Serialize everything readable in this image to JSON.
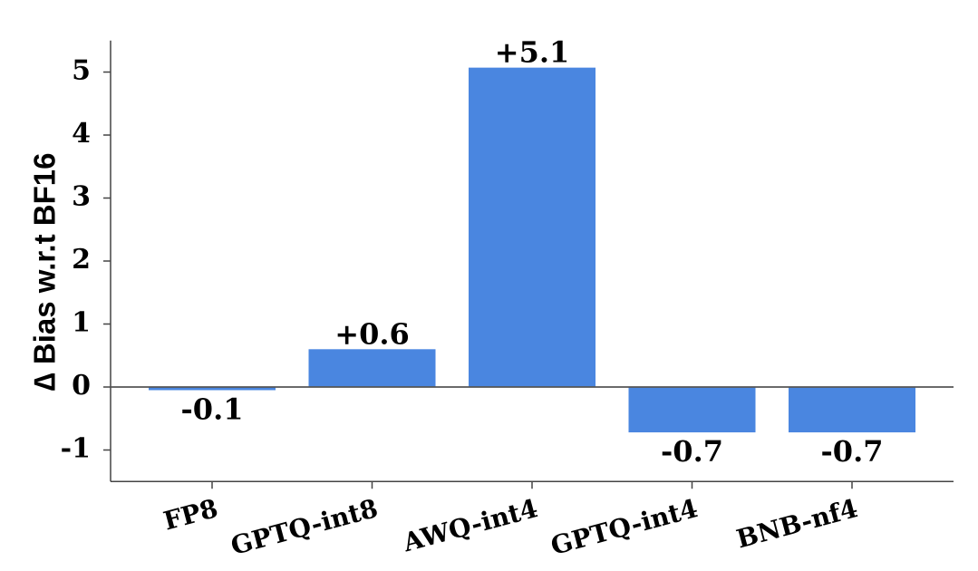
{
  "chart_data": {
    "type": "bar",
    "categories": [
      "FP8",
      "GPTQ-int8",
      "AWQ-int4",
      "GPTQ-int4",
      "BNB-nf4"
    ],
    "values": [
      -0.05,
      0.6,
      5.07,
      -0.72,
      -0.72
    ],
    "value_labels": [
      "-0.1",
      "+0.6",
      "+5.1",
      "-0.7",
      "-0.7"
    ],
    "ylabel": "∆ Bias w.r.t BF16",
    "xlabel": "",
    "title": "",
    "ylim": [
      -1.5,
      5.5
    ],
    "yticks": [
      -1,
      0,
      1,
      2,
      3,
      4,
      5
    ],
    "bar_color": "#4a86e0",
    "grid": false,
    "zero_line": true
  }
}
